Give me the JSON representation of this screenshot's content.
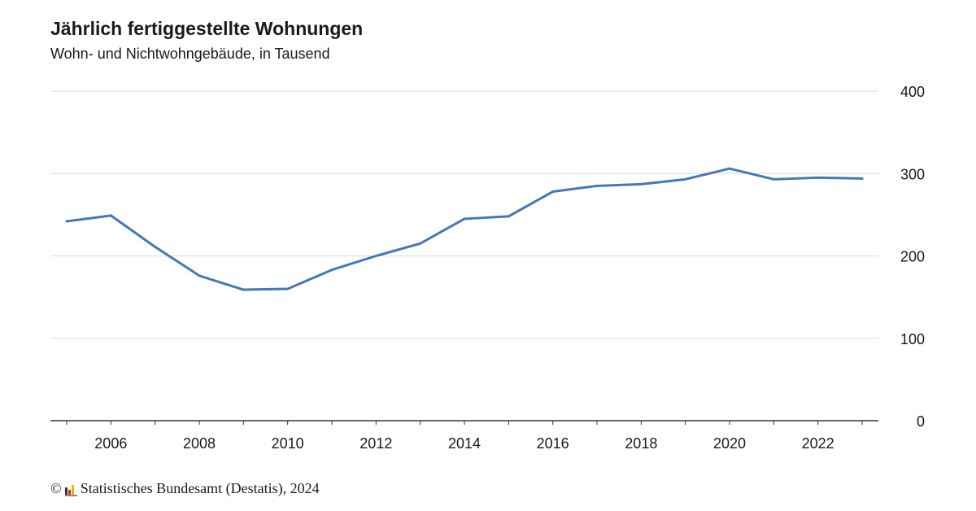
{
  "chart_data": {
    "type": "line",
    "title": "Jährlich fertiggestellte Wohnungen",
    "subtitle": "Wohn- und Nichtwohngebäude, in Tausend",
    "x": [
      2005,
      2006,
      2007,
      2008,
      2009,
      2010,
      2011,
      2012,
      2013,
      2014,
      2015,
      2016,
      2017,
      2018,
      2019,
      2020,
      2021,
      2022,
      2023
    ],
    "series": [
      {
        "values": [
          242,
          249,
          211,
          176,
          159,
          160,
          183,
          200,
          215,
          245,
          248,
          278,
          285,
          287,
          293,
          306,
          293,
          295,
          294
        ]
      }
    ],
    "xticks": [
      "2006",
      "2008",
      "2010",
      "2012",
      "2014",
      "2016",
      "2018",
      "2020",
      "2022"
    ],
    "yticks": [
      "0",
      "100",
      "200",
      "300",
      "400"
    ],
    "ylim": [
      0,
      400
    ],
    "xlim": [
      2005,
      2023
    ],
    "grid": true,
    "y_axis_position": "right",
    "line_color": "#4677b6"
  },
  "source": {
    "copyright_symbol": "©",
    "text": "Statistisches Bundesamt (Destatis), 2024"
  }
}
